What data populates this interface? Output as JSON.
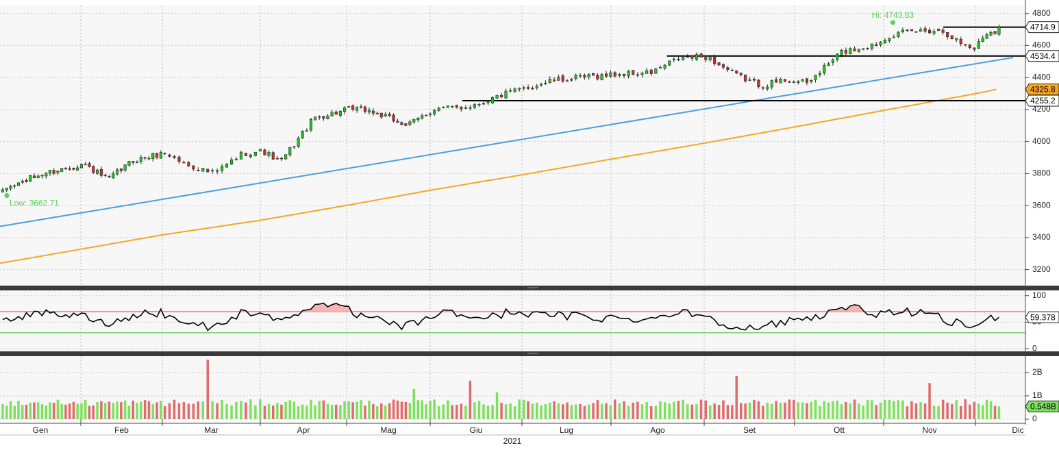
{
  "chart_data": {
    "type": "candlestick",
    "title": "",
    "year_label": "2021",
    "months": [
      "Gen",
      "Feb",
      "Mar",
      "Apr",
      "Mag",
      "Giu",
      "Lug",
      "Ago",
      "Set",
      "Ott",
      "Nov",
      "Dic"
    ],
    "price_panel": {
      "ylim": [
        3100,
        4850
      ],
      "yticks": [
        3200,
        3400,
        3600,
        3800,
        4000,
        4200,
        4400,
        4600,
        4800
      ],
      "anchors": [
        [
          0,
          3700
        ],
        [
          0.5,
          3800
        ],
        [
          1.0,
          3860
        ],
        [
          1.3,
          3760
        ],
        [
          1.6,
          3880
        ],
        [
          2.0,
          3930
        ],
        [
          2.2,
          3860
        ],
        [
          2.5,
          3800
        ],
        [
          2.8,
          3930
        ],
        [
          3.0,
          3940
        ],
        [
          3.2,
          3870
        ],
        [
          3.6,
          4150
        ],
        [
          4.0,
          4200
        ],
        [
          4.2,
          4200
        ],
        [
          4.4,
          4160
        ],
        [
          4.7,
          4100
        ],
        [
          5.0,
          4200
        ],
        [
          5.4,
          4220
        ],
        [
          5.8,
          4300
        ],
        [
          6.3,
          4380
        ],
        [
          7.0,
          4420
        ],
        [
          7.4,
          4430
        ],
        [
          7.7,
          4520
        ],
        [
          8.0,
          4530
        ],
        [
          8.3,
          4420
        ],
        [
          8.6,
          4350
        ],
        [
          8.9,
          4390
        ],
        [
          9.1,
          4360
        ],
        [
          9.5,
          4560
        ],
        [
          9.9,
          4610
        ],
        [
          10.0,
          4660
        ],
        [
          10.3,
          4690
        ],
        [
          10.6,
          4700
        ],
        [
          10.8,
          4620
        ],
        [
          10.95,
          4580
        ],
        [
          11.1,
          4680
        ],
        [
          11.25,
          4700
        ]
      ],
      "hi_label": "Hi: 4743.83",
      "hi_value": 4743.83,
      "hi_x": 10.1,
      "low_label": "Low: 3662.71",
      "low_value": 3662.71,
      "low_x": 0.05,
      "levels": [
        {
          "label": "4714.9",
          "value": 4714.9,
          "start": 10.65,
          "color": "#000000"
        },
        {
          "label": "4534.4",
          "value": 4534.4,
          "start": 7.6,
          "color": "#000000"
        },
        {
          "label": "4255.2",
          "value": 4255.2,
          "start": 5.35,
          "color": "#000000"
        }
      ],
      "trendline": {
        "x0": 0,
        "y0": 3470,
        "x1": 11.45,
        "y1": 4525,
        "color": "#4a9fde"
      },
      "moving_average": {
        "label": "4325.8",
        "start_value": 3240,
        "end_value": 4325.8,
        "end_x": 11.25,
        "color": "#f5a623"
      }
    },
    "rsi_panel": {
      "ylim": [
        -5,
        110
      ],
      "yticks": [
        0,
        50,
        100
      ],
      "ytick_labels": [
        "0",
        "50",
        "100"
      ],
      "upper_band": 70,
      "lower_band": 30,
      "last_label": "59.378",
      "last_value": 59.378
    },
    "volume_panel": {
      "ylim": [
        0,
        2.7
      ],
      "yticks": [
        0,
        1,
        2
      ],
      "ytick_labels": [
        "0",
        "1B",
        "2B"
      ],
      "last_label": "0.548B",
      "last_value": 0.548,
      "spikes": [
        {
          "x": 2.45,
          "value": 2.55
        },
        {
          "x": 4.78,
          "value": 1.3
        },
        {
          "x": 5.42,
          "value": 1.65
        },
        {
          "x": 5.7,
          "value": 1.15
        },
        {
          "x": 8.35,
          "value": 1.85
        },
        {
          "x": 10.48,
          "value": 1.55
        }
      ]
    },
    "colors": {
      "up": "#22c922",
      "down": "#c9302c",
      "up_volume": "#7fe05e",
      "down_volume": "#e06b6b",
      "rsi_line": "#000000",
      "rsi_upper": "#e03030",
      "rsi_lower": "#2fbf2f",
      "rsi_fill": "#f5b5b5",
      "label_green": "#5ccf5c"
    }
  }
}
